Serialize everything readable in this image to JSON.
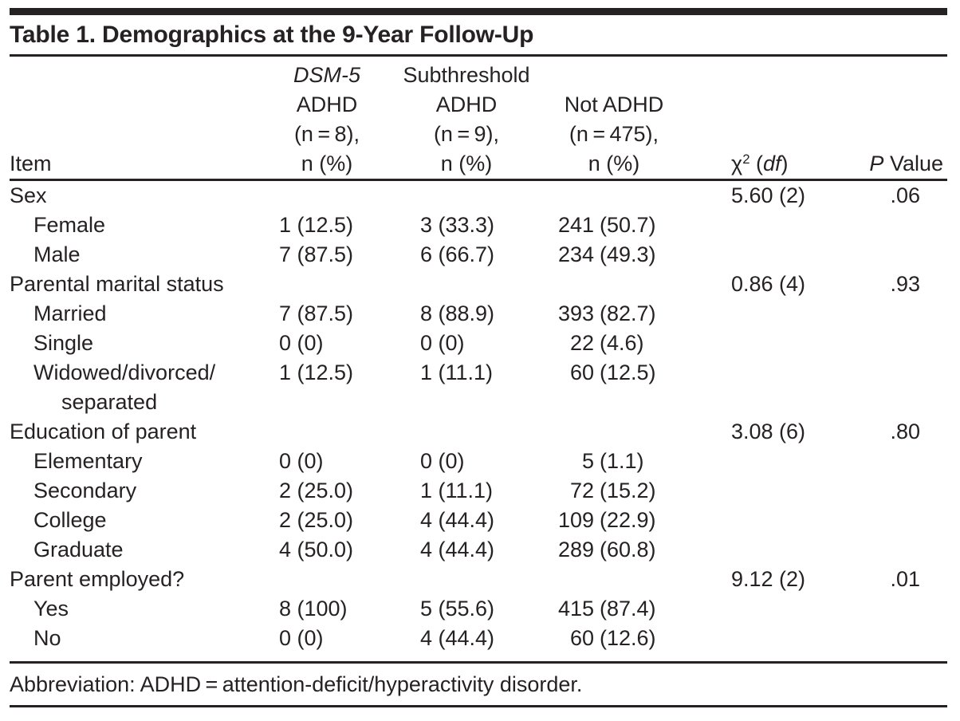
{
  "title": "Table 1. Demographics at the 9-Year Follow-Up",
  "columns": {
    "item": "Item",
    "dsm5": {
      "line1": "DSM-5",
      "line2": "ADHD",
      "line3": "(n = 8),",
      "line4": "n (%)"
    },
    "subthreshold": {
      "line1": "Subthreshold",
      "line2": "ADHD",
      "line3": "(n = 9),",
      "line4": "n (%)"
    },
    "not_adhd": {
      "line1": "Not ADHD",
      "line2": "(n = 475),",
      "line3": "n (%)"
    },
    "chi": {
      "symbol": "χ",
      "sup": "2",
      "open": " (",
      "df": "df",
      "close": ")"
    },
    "p": {
      "italic": "P",
      "rest": " Value"
    }
  },
  "rows": [
    {
      "label": "Sex",
      "chi": "5.60 (2)",
      "p": ".06"
    },
    {
      "label": "Female",
      "v1": "1 (12.5)",
      "v2": "3 (33.3)",
      "v3n": "241",
      "v3p": "(50.7)"
    },
    {
      "label": "Male",
      "v1": "7 (87.5)",
      "v2": "6 (66.7)",
      "v3n": "234",
      "v3p": "(49.3)"
    },
    {
      "label": "Parental marital status",
      "chi": "0.86 (4)",
      "p": ".93"
    },
    {
      "label": "Married",
      "v1": "7 (87.5)",
      "v2": "8 (88.9)",
      "v3n": "393",
      "v3p": "(82.7)"
    },
    {
      "label": "Single",
      "v1": "0 (0)",
      "v2": "0 (0)",
      "v3n": "22",
      "v3p": "(4.6)"
    },
    {
      "label": "Widowed/divorced/",
      "label2": "separated",
      "v1": "1 (12.5)",
      "v2": "1 (11.1)",
      "v3n": "60",
      "v3p": "(12.5)"
    },
    {
      "label": "Education of parent",
      "chi": "3.08 (6)",
      "p": ".80"
    },
    {
      "label": "Elementary",
      "v1": "0 (0)",
      "v2": "0 (0)",
      "v3n": "5",
      "v3p": "(1.1)"
    },
    {
      "label": "Secondary",
      "v1": "2 (25.0)",
      "v2": "1 (11.1)",
      "v3n": "72",
      "v3p": "(15.2)"
    },
    {
      "label": "College",
      "v1": "2 (25.0)",
      "v2": "4 (44.4)",
      "v3n": "109",
      "v3p": "(22.9)"
    },
    {
      "label": "Graduate",
      "v1": "4 (50.0)",
      "v2": "4 (44.4)",
      "v3n": "289",
      "v3p": "(60.8)"
    },
    {
      "label": "Parent employed?",
      "chi": "9.12 (2)",
      "p": ".01"
    },
    {
      "label": "Yes",
      "v1": "8 (100)",
      "v2": "5 (55.6)",
      "v3n": "415",
      "v3p": "(87.4)"
    },
    {
      "label": "No",
      "v1": "0 (0)",
      "v2": "4 (44.4)",
      "v3n": "60",
      "v3p": "(12.6)"
    }
  ],
  "footnote": "Abbreviation: ADHD = attention-deficit/hyperactivity disorder."
}
